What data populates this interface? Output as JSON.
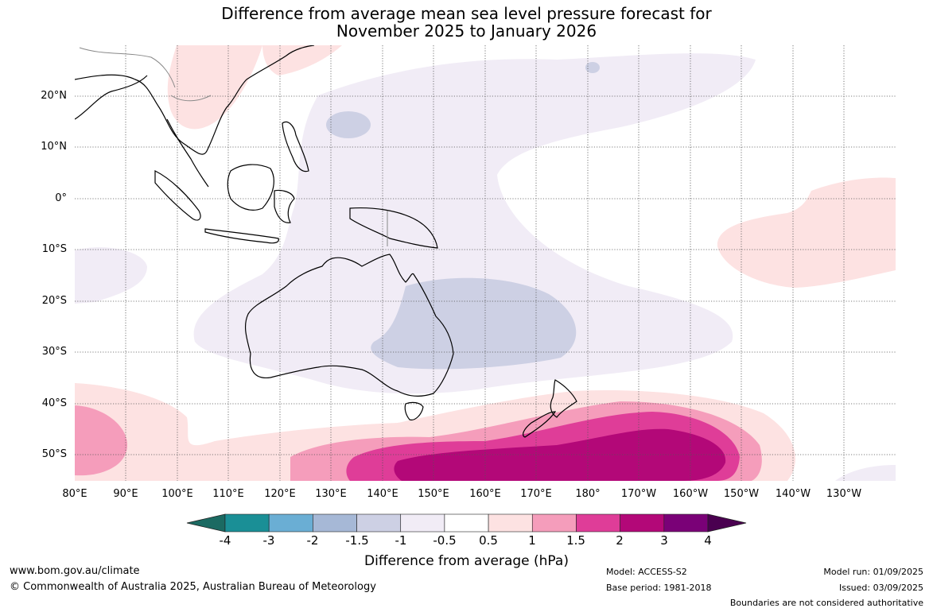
{
  "title_line1": "Difference from average mean sea level pressure forecast for",
  "title_line2": "November 2025 to January 2026",
  "lat_labels": [
    "20°N",
    "10°N",
    "0°",
    "10°S",
    "20°S",
    "30°S",
    "40°S",
    "50°S"
  ],
  "lon_labels": [
    "80°E",
    "90°E",
    "100°E",
    "110°E",
    "120°E",
    "130°E",
    "140°E",
    "150°E",
    "160°E",
    "170°E",
    "180°",
    "170°W",
    "160°W",
    "150°W",
    "140°W",
    "130°W"
  ],
  "colorbar": {
    "labels": [
      "-4",
      "-3",
      "-2",
      "-1.5",
      "-1",
      "-0.5",
      "0.5",
      "1",
      "1.5",
      "2",
      "3",
      "4"
    ],
    "colors": [
      "#1b6a62",
      "#1a8f96",
      "#6aaed4",
      "#a6b8d6",
      "#cdd0e4",
      "#f1ecf6",
      "#ffffff",
      "#fde2e2",
      "#f59dbb",
      "#df3d98",
      "#b30878",
      "#7a0177",
      "#4a0050"
    ],
    "title": "Difference from average (hPa)"
  },
  "footer": {
    "website": "www.bom.gov.au/climate",
    "copyright": "© Commonwealth of Australia 2025, Australian Bureau of Meteorology",
    "model": "Model: ACCESS-S2",
    "base_period": "Base period: 1981-2018",
    "model_run": "Model run: 01/09/2025",
    "issued": "Issued: 03/09/2025",
    "disclaimer": "Boundaries are not considered authoritative"
  }
}
